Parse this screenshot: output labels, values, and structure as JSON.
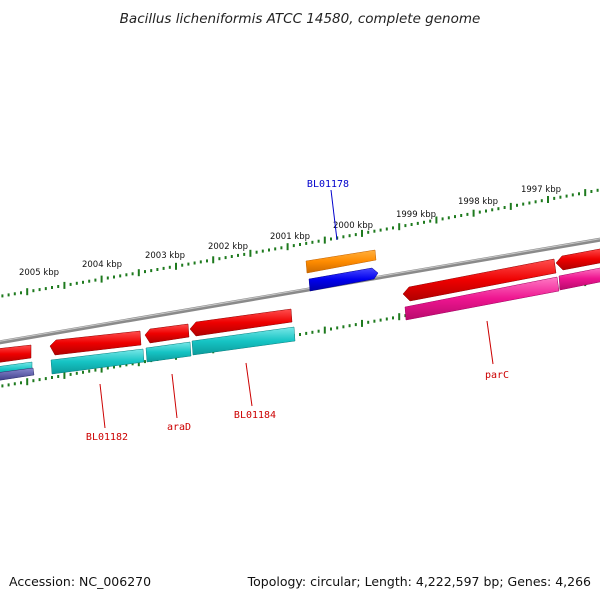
{
  "title": "Bacillus licheniformis ATCC 14580, complete genome",
  "scale_labels": [
    "2005 kbp",
    "2004 kbp",
    "2003 kbp",
    "2002 kbp",
    "2001 kbp",
    "2000 kbp",
    "1999 kbp",
    "1998 kbp",
    "1997 kbp"
  ],
  "gene_labels": {
    "bl01178": "BL01178",
    "bl01182": "BL01182",
    "arad": "araD",
    "bl01184": "BL01184",
    "parc": "parC"
  },
  "footer": {
    "accession": "Accession: NC_006270",
    "summary": "Topology: circular; Length: 4,222,597 bp; Genes: 4,266"
  },
  "colors": {
    "backbone": "#8a8a8a",
    "tick": "#1e7a1e",
    "cds_red": "#ee0000",
    "cds_orange": "#ff8c00",
    "cds_blue": "#0000ee",
    "cds_cyan": "#16c4c4",
    "cds_magenta": "#ee1590",
    "label_blue": "#0000cc",
    "label_red": "#cc0000"
  }
}
